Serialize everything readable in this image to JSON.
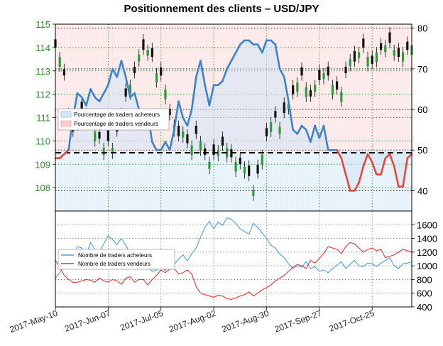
{
  "chart_data": {
    "title": "Positionnement des clients – USD/JPY",
    "type": "line",
    "x_tick_labels": [
      "2017-May-10",
      "2017-Jun-07",
      "2017-Jul-05",
      "2017-Aug-02",
      "2017-Aug-30",
      "2017-Sep-27",
      "2017-Oct-25"
    ],
    "top_panel": {
      "price_axis": {
        "label_side": "left",
        "range": [
          107,
          115
        ],
        "ticks": [
          "108",
          "109",
          "110",
          "111",
          "112",
          "113",
          "114",
          "115"
        ]
      },
      "percent_axis": {
        "label_side": "right",
        "range": [
          35,
          81
        ],
        "ticks": [
          "40",
          "50",
          "60",
          "70",
          "80"
        ]
      },
      "reference_line": 50,
      "legend": [
        "Pourcentage de traders acheteurs",
        "Pourcentage de traders vendeurs"
      ],
      "colors": {
        "acheteurs": "#3c83c8",
        "vendeurs": "#e8463a",
        "reference": "#000000"
      },
      "series": [
        {
          "name": "Pourcentage de traders acheteurs",
          "values": [
            48,
            48,
            49,
            50,
            58,
            64,
            63,
            61,
            65,
            63,
            62,
            64,
            66,
            70,
            68,
            72,
            68,
            63,
            64,
            60,
            56,
            59,
            52,
            50,
            50,
            52,
            50,
            55,
            62,
            58,
            56,
            60,
            68,
            72,
            66,
            61,
            66,
            66,
            67,
            70,
            72,
            74,
            76,
            77,
            77,
            76,
            76,
            74,
            77,
            77,
            76,
            70,
            68,
            62,
            55,
            54,
            56,
            55,
            52,
            56,
            53,
            56,
            50,
            50,
            50,
            48,
            44,
            40,
            40,
            42,
            46,
            49,
            47,
            44,
            44,
            48,
            49,
            46,
            41,
            41,
            48,
            49
          ]
        },
        {
          "name": "price",
          "values": [
            114.0,
            113.6,
            112.8,
            111.2,
            110.4,
            110.9,
            111.3,
            111.2,
            110.7,
            110.4,
            110.1,
            109.7,
            110.0,
            109.7,
            110.4,
            111.2,
            111.9,
            112.4,
            112.9,
            113.7,
            113.9,
            113.9,
            113.6,
            112.9,
            112.8,
            112.2,
            111.1,
            110.7,
            110.2,
            110.4,
            109.9,
            109.8,
            110.3,
            110.0,
            109.4,
            109.1,
            109.4,
            109.6,
            109.8,
            109.7,
            109.3,
            109.1,
            109.0,
            108.9,
            108.5,
            107.9,
            108.6,
            109.4,
            110.2,
            110.8,
            111.0,
            110.6,
            111.2,
            111.6,
            112.0,
            112.5,
            112.8,
            112.3,
            111.9,
            112.4,
            112.6,
            112.9,
            112.8,
            112.4,
            112.2,
            112.1,
            112.9,
            113.5,
            113.4,
            113.8,
            114.0,
            113.6,
            113.3,
            113.8,
            113.9,
            114.1,
            114.2,
            113.9,
            113.6,
            113.8,
            113.9,
            114.1
          ]
        }
      ]
    },
    "bottom_panel": {
      "count_axis": {
        "label_side": "right",
        "range": [
          400,
          1800
        ],
        "ticks": [
          "400",
          "600",
          "800",
          "1000",
          "1200",
          "1400",
          "1600"
        ]
      },
      "legend": [
        "Nombre de traders acheteurs",
        "Nombre de traders vendeurs"
      ],
      "colors": {
        "acheteurs": "#4d9be6",
        "vendeurs": "#e63232"
      },
      "series": [
        {
          "name": "Nombre de traders acheteurs",
          "values": [
            820,
            900,
            1000,
            1080,
            1140,
            1280,
            1260,
            1160,
            1340,
            1240,
            1210,
            1320,
            1440,
            1380,
            1310,
            1400,
            1300,
            1180,
            1220,
            1050,
            1000,
            980,
            920,
            940,
            980,
            930,
            1000,
            1020,
            1100,
            1160,
            1070,
            1180,
            1260,
            1420,
            1560,
            1650,
            1540,
            1640,
            1590,
            1700,
            1680,
            1620,
            1540,
            1500,
            1460,
            1620,
            1560,
            1480,
            1400,
            1300,
            1260,
            1170,
            1120,
            1030,
            960,
            1000,
            980,
            1060,
            960,
            990,
            920,
            940,
            900,
            960,
            1010,
            1060,
            960,
            1020,
            1080,
            1000,
            990,
            1040,
            1030,
            990,
            1040,
            1080,
            1120,
            1000,
            960,
            1030,
            1040,
            1060
          ]
        },
        {
          "name": "Nombre de traders vendeurs",
          "values": [
            1080,
            980,
            860,
            800,
            760,
            760,
            780,
            800,
            790,
            760,
            820,
            780,
            760,
            800,
            780,
            730,
            820,
            840,
            760,
            800,
            800,
            720,
            800,
            860,
            940,
            900,
            950,
            960,
            880,
            900,
            940,
            880,
            700,
            600,
            580,
            560,
            540,
            570,
            560,
            520,
            510,
            530,
            560,
            580,
            620,
            560,
            600,
            650,
            680,
            720,
            780,
            820,
            860,
            920,
            980,
            1020,
            1000,
            960,
            1080,
            1040,
            1110,
            1180,
            1280,
            1260,
            1240,
            1180,
            1280,
            1340,
            1320,
            1260,
            1200,
            1240,
            1260,
            1220,
            1240,
            1120,
            1140,
            1160,
            1200,
            1240,
            1220,
            1200
          ]
        }
      ]
    }
  }
}
